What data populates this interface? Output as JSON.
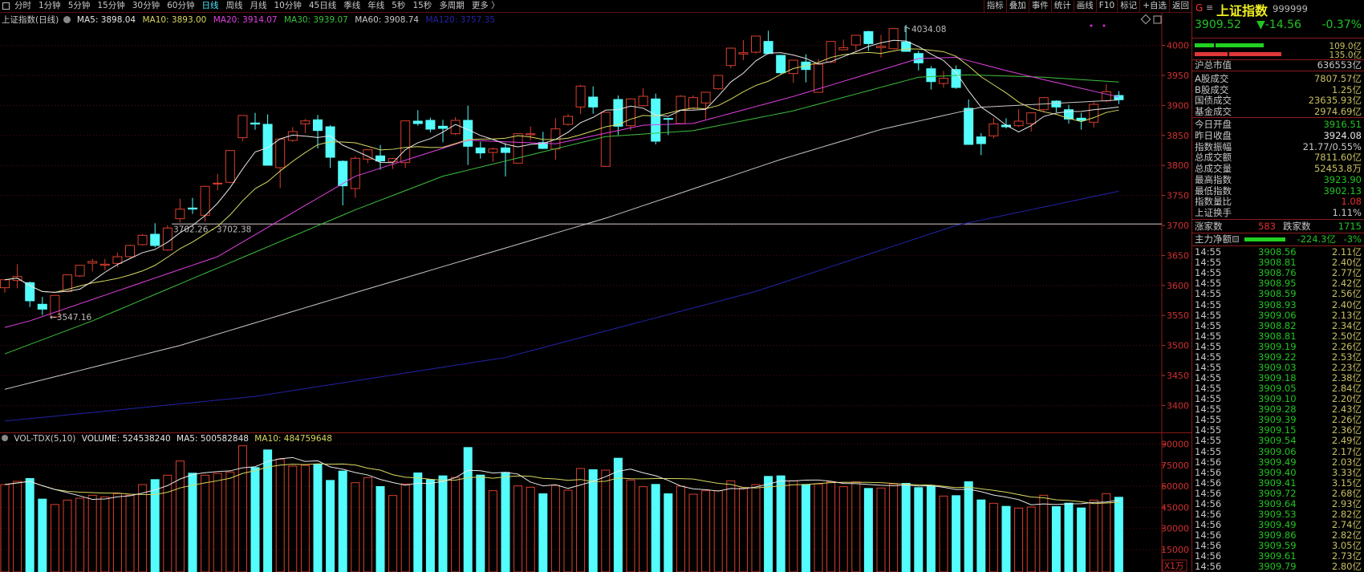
{
  "menu": {
    "periods": [
      "分时",
      "1分钟",
      "5分钟",
      "15分钟",
      "30分钟",
      "60分钟",
      "日线",
      "周线",
      "月线",
      "10分钟",
      "45日线",
      "季线",
      "年线",
      "5秒",
      "15秒",
      "多周期",
      "更多 〉"
    ],
    "active": "日线"
  },
  "toolbar": [
    "指标",
    "叠加",
    "事件",
    "统计",
    "画线",
    "F10",
    "标记",
    "+自选",
    "返回"
  ],
  "legend": {
    "title": "上证指数(日线)",
    "ma5": "MA5: 3898.04",
    "ma10": "MA10: 3893.00",
    "ma20": "MA20: 3914.07",
    "ma30": "MA30: 3939.07",
    "ma60": "MA60: 3908.74",
    "ma120": "MA120: 3757.35"
  },
  "volume_legend": {
    "title": "VOL-TDX(5,10)",
    "volume": "VOLUME: 524538240",
    "ma5": "MA5: 500582848",
    "ma10": "MA10: 484759648"
  },
  "annotations": {
    "high": "4034.08",
    "low": "←3547.16",
    "line": "3702.26 - 3702.38"
  },
  "colors": {
    "up": "#d8402c",
    "down": "#54fcfc",
    "ma5": "#e6e6e6",
    "ma10": "#d8d860",
    "ma20": "#e040e0",
    "ma30": "#3cc03c",
    "ma60": "#c8c8c8",
    "ma120": "#2323a8",
    "axis": "#d23030",
    "green": "#22c322",
    "yellow": "#c8c060"
  },
  "quote": {
    "flag": "G",
    "name": "上证指数",
    "code": "999999",
    "price": "3909.52",
    "change": "▼-14.56",
    "pct": "-0.37%",
    "buy_amount": "109.0亿",
    "sell_amount": "135.0亿",
    "market_cap_label": "沪总市值",
    "market_cap": "636553亿"
  },
  "turnover": [
    {
      "label": "A股成交",
      "value": "7807.57亿",
      "color": "#c8c060"
    },
    {
      "label": "B股成交",
      "value": "1.25亿",
      "color": "#c8c060"
    },
    {
      "label": "国债成交",
      "value": "23635.93亿",
      "color": "#c8c060"
    },
    {
      "label": "基金成交",
      "value": "2974.69亿",
      "color": "#c8c060"
    }
  ],
  "stats": [
    {
      "label": "今日开盘",
      "value": "3916.51",
      "color": "#22c322"
    },
    {
      "label": "昨日收盘",
      "value": "3924.08",
      "color": "#e6e6e6"
    },
    {
      "label": "指数振幅",
      "value": "21.77/0.55%",
      "color": "#c8c8c8"
    },
    {
      "label": "总成交额",
      "value": "7811.60亿",
      "color": "#c8c060"
    },
    {
      "label": "总成交量",
      "value": "52453.8万",
      "color": "#c8c060"
    },
    {
      "label": "最高指数",
      "value": "3923.90",
      "color": "#22c322"
    },
    {
      "label": "最低指数",
      "value": "3902.13",
      "color": "#22c322"
    },
    {
      "label": "指数量比",
      "value": "1.08",
      "color": "#e03030"
    },
    {
      "label": "上证换手",
      "value": "1.11%",
      "color": "#c8c8c8"
    }
  ],
  "breadth": {
    "up_label": "涨家数",
    "up": "583",
    "down_label": "跌家数",
    "down": "1715"
  },
  "main_flow": {
    "label": "主力净额",
    "value": "-224.3亿",
    "pct": "-3%"
  },
  "ticks": [
    [
      "14:55",
      "3908.56",
      "2.11亿"
    ],
    [
      "14:55",
      "3908.81",
      "2.40亿"
    ],
    [
      "14:55",
      "3908.76",
      "2.77亿"
    ],
    [
      "14:55",
      "3908.95",
      "2.42亿"
    ],
    [
      "14:55",
      "3908.59",
      "2.56亿"
    ],
    [
      "14:55",
      "3908.93",
      "2.40亿"
    ],
    [
      "14:55",
      "3909.06",
      "2.13亿"
    ],
    [
      "14:55",
      "3908.82",
      "2.34亿"
    ],
    [
      "14:55",
      "3908.81",
      "2.50亿"
    ],
    [
      "14:55",
      "3909.19",
      "2.26亿"
    ],
    [
      "14:55",
      "3909.22",
      "2.53亿"
    ],
    [
      "14:55",
      "3909.03",
      "2.23亿"
    ],
    [
      "14:55",
      "3909.18",
      "2.38亿"
    ],
    [
      "14:55",
      "3909.05",
      "2.84亿"
    ],
    [
      "14:55",
      "3909.10",
      "2.20亿"
    ],
    [
      "14:55",
      "3909.28",
      "2.43亿"
    ],
    [
      "14:55",
      "3909.39",
      "2.26亿"
    ],
    [
      "14:55",
      "3909.15",
      "2.36亿"
    ],
    [
      "14:55",
      "3909.54",
      "2.49亿"
    ],
    [
      "14:55",
      "3909.06",
      "2.17亿"
    ],
    [
      "14:56",
      "3909.49",
      "2.03亿"
    ],
    [
      "14:56",
      "3909.40",
      "3.33亿"
    ],
    [
      "14:56",
      "3909.41",
      "3.15亿"
    ],
    [
      "14:56",
      "3909.72",
      "2.68亿"
    ],
    [
      "14:56",
      "3909.64",
      "2.93亿"
    ],
    [
      "14:56",
      "3909.53",
      "2.82亿"
    ],
    [
      "14:56",
      "3909.49",
      "2.74亿"
    ],
    [
      "14:56",
      "3909.86",
      "2.82亿"
    ],
    [
      "14:56",
      "3909.59",
      "3.05亿"
    ],
    [
      "14:56",
      "3909.61",
      "2.73亿"
    ],
    [
      "14:56",
      "3909.79",
      "2.80亿"
    ]
  ],
  "chart_data": {
    "type": "candlestick",
    "price_axis": {
      "ticks": [
        "4000",
        "3950",
        "3900",
        "3850",
        "3800",
        "3750",
        "3700",
        "3650",
        "3600",
        "3550",
        "3500",
        "3450",
        "3400"
      ],
      "range": [
        3370,
        4045
      ]
    },
    "volume_axis": {
      "ticks": [
        "90000",
        "75000",
        "60000",
        "45000",
        "30000",
        "15000"
      ],
      "unit": "X1万"
    },
    "candles_ohlc": [
      [
        3596.2,
        3609.5,
        3587.7,
        3609.5
      ],
      [
        3608.2,
        3635.4,
        3595.3,
        3614.9
      ],
      [
        3604.6,
        3606.4,
        3564.1,
        3574.4
      ],
      [
        3568.6,
        3581.0,
        3550.7,
        3560.5
      ],
      [
        3547.6,
        3583.3,
        3547.2,
        3583.3
      ],
      [
        3590.0,
        3617.6,
        3588.6,
        3617.6
      ],
      [
        3615.8,
        3633.6,
        3614.0,
        3633.6
      ],
      [
        3637.2,
        3644.3,
        3623.4,
        3639.9
      ],
      [
        3633.6,
        3644.3,
        3625.6,
        3635.4
      ],
      [
        3636.7,
        3654.6,
        3630.1,
        3647.9
      ],
      [
        3647.9,
        3668.0,
        3645.7,
        3666.6
      ],
      [
        3668.0,
        3685.8,
        3666.6,
        3683.5
      ],
      [
        3685.3,
        3703.6,
        3663.5,
        3666.6
      ],
      [
        3659.0,
        3700.0,
        3657.7,
        3695.6
      ],
      [
        3711.2,
        3744.6,
        3704.9,
        3727.2
      ],
      [
        3729.0,
        3745.9,
        3719.2,
        3727.2
      ],
      [
        3717.0,
        3766.0,
        3706.7,
        3765.1
      ],
      [
        3769.1,
        3786.0,
        3758.4,
        3770.4
      ],
      [
        3771.8,
        3824.8,
        3770.4,
        3824.8
      ],
      [
        3846.2,
        3883.2,
        3840.4,
        3883.2
      ],
      [
        3870.7,
        3887.6,
        3859.5,
        3868.9
      ],
      [
        3868.5,
        3885.0,
        3800.3,
        3800.3
      ],
      [
        3796.3,
        3844.0,
        3762.4,
        3844.0
      ],
      [
        3841.7,
        3864.0,
        3839.5,
        3856.4
      ],
      [
        3869.3,
        3877.4,
        3853.7,
        3874.2
      ],
      [
        3876.0,
        3884.0,
        3828.3,
        3858.2
      ],
      [
        3864.4,
        3867.1,
        3795.8,
        3813.6
      ],
      [
        3806.9,
        3808.3,
        3733.4,
        3766.0
      ],
      [
        3761.5,
        3815.0,
        3746.1,
        3811.9
      ],
      [
        3810.5,
        3827.0,
        3803.8,
        3826.1
      ],
      [
        3815.9,
        3834.1,
        3792.7,
        3807.4
      ],
      [
        3806.0,
        3812.7,
        3794.0,
        3811.4
      ],
      [
        3804.7,
        3874.2,
        3795.8,
        3874.2
      ],
      [
        3873.8,
        3892.1,
        3866.2,
        3869.8
      ],
      [
        3875.1,
        3879.6,
        3855.1,
        3860.4
      ],
      [
        3865.3,
        3876.0,
        3838.6,
        3861.7
      ],
      [
        3852.8,
        3880.5,
        3850.6,
        3875.1
      ],
      [
        3875.1,
        3899.6,
        3800.7,
        3831.9
      ],
      [
        3829.2,
        3839.5,
        3811.4,
        3820.8
      ],
      [
        3821.6,
        3829.7,
        3806.0,
        3827.4
      ],
      [
        3829.2,
        3837.2,
        3781.6,
        3821.6
      ],
      [
        3803.8,
        3853.7,
        3802.9,
        3852.8
      ],
      [
        3851.1,
        3864.9,
        3841.7,
        3852.8
      ],
      [
        3838.1,
        3856.0,
        3827.4,
        3828.3
      ],
      [
        3827.4,
        3878.7,
        3809.6,
        3860.9
      ],
      [
        3868.4,
        3885.4,
        3866.2,
        3881.8
      ],
      [
        3897.4,
        3934.4,
        3885.4,
        3932.2
      ],
      [
        3913.9,
        3931.7,
        3886.2,
        3897.4
      ],
      [
        3798.5,
        3888.5,
        3798.5,
        3888.5
      ],
      [
        3909.9,
        3916.6,
        3850.6,
        3865.3
      ],
      [
        3866.2,
        3911.7,
        3858.2,
        3910.8
      ],
      [
        3899.6,
        3928.6,
        3898.3,
        3915.2
      ],
      [
        3910.8,
        3919.7,
        3835.0,
        3840.4
      ],
      [
        3878.2,
        3879.6,
        3850.6,
        3877.3
      ],
      [
        3869.8,
        3917.0,
        3868.4,
        3915.2
      ],
      [
        3895.2,
        3916.6,
        3893.0,
        3913.0
      ],
      [
        3904.1,
        3922.8,
        3877.3,
        3921.9
      ],
      [
        3927.7,
        3950.0,
        3926.4,
        3950.0
      ],
      [
        3966.5,
        3996.3,
        3962.0,
        3995.4
      ],
      [
        3985.6,
        4008.8,
        3975.4,
        3987.9
      ],
      [
        3988.7,
        4015.5,
        3986.5,
        4015.5
      ],
      [
        4006.6,
        4024.4,
        3985.2,
        3986.5
      ],
      [
        3983.4,
        3984.3,
        3950.9,
        3954.4
      ],
      [
        3953.1,
        3976.3,
        3937.5,
        3975.4
      ],
      [
        3972.3,
        3985.2,
        3938.4,
        3959.8
      ],
      [
        3921.9,
        3977.6,
        3921.9,
        3968.7
      ],
      [
        3972.3,
        4006.6,
        3970.9,
        4006.6
      ],
      [
        3992.8,
        4009.7,
        3991.9,
        3996.3
      ],
      [
        4000.8,
        4017.7,
        3991.0,
        4016.8
      ],
      [
        4023.1,
        4024.4,
        3991.0,
        4003.0
      ],
      [
        3996.3,
        4017.7,
        3979.8,
        3998.6
      ],
      [
        3994.5,
        4028.0,
        3993.2,
        4028.0
      ],
      [
        4005.7,
        4034.08,
        3989.2,
        3990.1
      ],
      [
        3986.5,
        3991.0,
        3958.4,
        3970.9
      ],
      [
        3961.1,
        3965.6,
        3926.4,
        3939.7
      ],
      [
        3936.6,
        3957.6,
        3929.5,
        3945.1
      ],
      [
        3959.8,
        3966.5,
        3927.7,
        3929.9
      ],
      [
        3895.2,
        3909.9,
        3835.0,
        3835.0
      ],
      [
        3847.5,
        3853.7,
        3817.2,
        3836.3
      ],
      [
        3849.3,
        3879.6,
        3844.8,
        3869.3
      ],
      [
        3867.1,
        3878.7,
        3861.7,
        3864.4
      ],
      [
        3866.2,
        3893.8,
        3864.0,
        3873.8
      ],
      [
        3869.8,
        3888.5,
        3856.4,
        3887.6
      ],
      [
        3892.9,
        3914.0,
        3890.0,
        3913.0
      ],
      [
        3907.2,
        3908.5,
        3888.5,
        3897.4
      ],
      [
        3892.9,
        3900.9,
        3869.7,
        3877.3
      ],
      [
        3878.7,
        3887.6,
        3859.5,
        3875.1
      ],
      [
        3872.0,
        3905.4,
        3863.1,
        3901.8
      ],
      [
        3907.6,
        3935.2,
        3905.4,
        3922.8
      ],
      [
        3916.51,
        3923.9,
        3902.13,
        3909.52
      ]
    ],
    "volumes_wan": [
      61201,
      63482,
      65763,
      51125,
      46993,
      50175,
      51506,
      53597,
      52456,
      54737,
      53597,
      61201,
      65003,
      67854,
      77930,
      69565,
      67854,
      69185,
      70135,
      88765,
      73557,
      86104,
      79260,
      74318,
      74888,
      75838,
      64432,
      71086,
      62531,
      66143,
      60060,
      53407,
      61581,
      69755,
      65003,
      67664,
      66334,
      87815,
      68235,
      56829,
      70135,
      60251,
      59300,
      54928,
      60631,
      57209,
      72607,
      72037,
      71466,
      80211,
      64432,
      59680,
      61581,
      54928,
      60060,
      54357,
      56829,
      56829,
      63862,
      58730,
      61201,
      67284,
      67664,
      63862,
      61581,
      61581,
      63102,
      59680,
      63102,
      58730,
      58730,
      61581,
      62341,
      59300,
      60060,
      53027,
      53597,
      63482,
      50555,
      47894,
      45993,
      44472,
      45232,
      53597,
      45803,
      48274,
      44852,
      50175,
      54737,
      52454
    ],
    "ma_anchors": {
      "ma20": [
        [
          0,
          3530
        ],
        [
          2,
          3541
        ],
        [
          17,
          3648
        ],
        [
          28,
          3782
        ],
        [
          37,
          3842
        ],
        [
          44,
          3836
        ],
        [
          51,
          3867
        ],
        [
          55,
          3870
        ],
        [
          63,
          3915
        ],
        [
          73,
          3978
        ],
        [
          76,
          3980
        ],
        [
          80,
          3958
        ],
        [
          83,
          3943
        ],
        [
          89,
          3914
        ]
      ],
      "ma30": [
        [
          0,
          3486
        ],
        [
          7,
          3541
        ],
        [
          28,
          3726
        ],
        [
          35,
          3782
        ],
        [
          48,
          3848
        ],
        [
          55,
          3858
        ],
        [
          63,
          3891
        ],
        [
          73,
          3947
        ],
        [
          77,
          3951
        ],
        [
          83,
          3947
        ],
        [
          89,
          3939
        ]
      ],
      "ma60": [
        [
          0,
          3427
        ],
        [
          14,
          3500
        ],
        [
          28,
          3588
        ],
        [
          48,
          3712
        ],
        [
          62,
          3810
        ],
        [
          70,
          3860
        ],
        [
          78,
          3897
        ],
        [
          89,
          3909
        ]
      ],
      "ma120": [
        [
          0,
          3374
        ],
        [
          20,
          3415
        ],
        [
          40,
          3480
        ],
        [
          60,
          3590
        ],
        [
          76,
          3700
        ],
        [
          89,
          3757
        ]
      ]
    },
    "reference_line": 3702.32
  }
}
